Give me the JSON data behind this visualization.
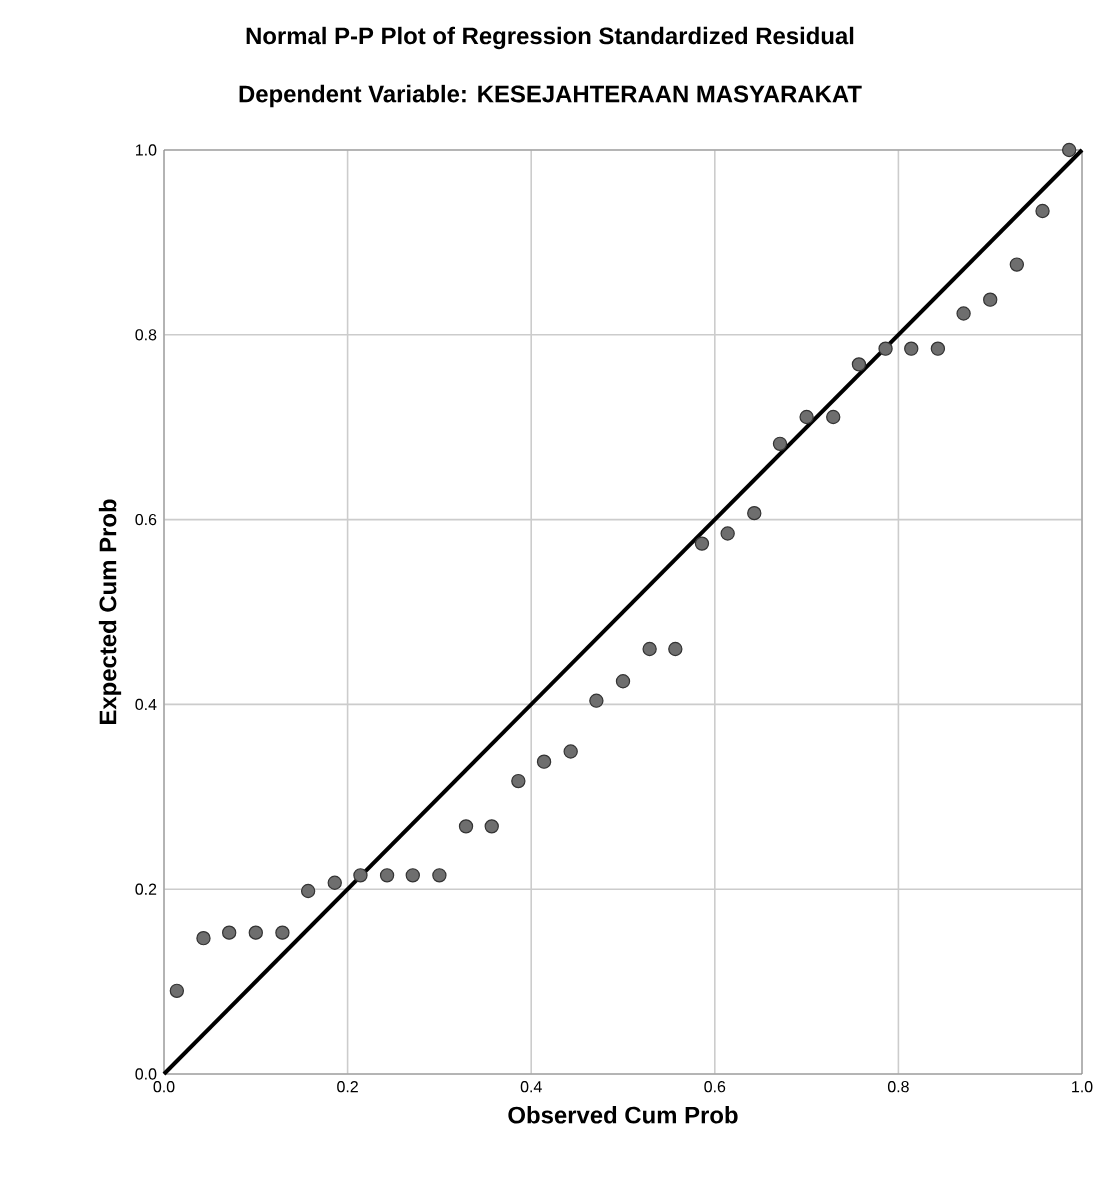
{
  "chart_data": {
    "type": "scatter",
    "title": "Normal P-P Plot of Regression Standardized Residual",
    "subtitle": "Dependent Variable: KESEJAHTERAAN MASYARAKAT",
    "xlabel": "Observed Cum Prob",
    "ylabel": "Expected Cum Prob",
    "xlim": [
      0,
      1
    ],
    "ylim": [
      0,
      1
    ],
    "xticks": [
      {
        "value": 0,
        "label": "0.0"
      },
      {
        "value": 0.2,
        "label": "0.2"
      },
      {
        "value": 0.4,
        "label": "0.4"
      },
      {
        "value": 0.6,
        "label": "0.6"
      },
      {
        "value": 0.8,
        "label": "0.8"
      },
      {
        "value": 1,
        "label": "1.0"
      }
    ],
    "yticks": [
      {
        "value": 0,
        "label": "0.0"
      },
      {
        "value": 0.2,
        "label": "0.2"
      },
      {
        "value": 0.4,
        "label": "0.4"
      },
      {
        "value": 0.6,
        "label": "0.6"
      },
      {
        "value": 0.8,
        "label": "0.8"
      },
      {
        "value": 1,
        "label": "1.0"
      }
    ],
    "grid": true,
    "marker": "circle",
    "series": [
      {
        "color": "#6e6e6e",
        "x": [
          0.014,
          0.043,
          0.071,
          0.1,
          0.129,
          0.157,
          0.186,
          0.214,
          0.243,
          0.271,
          0.3,
          0.329,
          0.357,
          0.386,
          0.414,
          0.443,
          0.471,
          0.5,
          0.529,
          0.557,
          0.586,
          0.614,
          0.643,
          0.671,
          0.7,
          0.729,
          0.757,
          0.786,
          0.814,
          0.843,
          0.871,
          0.9,
          0.929,
          0.957,
          0.986
        ],
        "values": [
          0.09,
          0.147,
          0.153,
          0.153,
          0.153,
          0.198,
          0.207,
          0.215,
          0.215,
          0.215,
          0.215,
          0.268,
          0.268,
          0.317,
          0.338,
          0.349,
          0.404,
          0.425,
          0.46,
          0.46,
          0.574,
          0.585,
          0.607,
          0.682,
          0.711,
          0.711,
          0.768,
          0.785,
          0.785,
          0.785,
          0.823,
          0.838,
          0.876,
          0.934,
          1.0
        ]
      },
      {
        "type": "line",
        "marker": "none",
        "color": "#000000",
        "x": [
          0,
          1
        ],
        "values": [
          0,
          1
        ]
      }
    ]
  }
}
